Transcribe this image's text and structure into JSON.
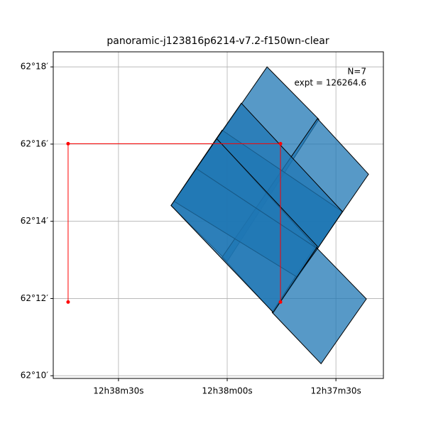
{
  "chart_data": {
    "type": "footprint",
    "title": "panoramic-j123816p6214-v7.2-f150wn-clear",
    "annotations": [
      "N=7",
      "expt = 126264.6"
    ],
    "xlim": [
      108.0,
      16.9
    ],
    "ylim": [
      9.93,
      18.39
    ],
    "xticks": [
      {
        "value": 90,
        "label": "12h38m30s"
      },
      {
        "value": 60,
        "label": "12h38m00s"
      },
      {
        "value": 30,
        "label": "12h37m30s"
      }
    ],
    "yticks": [
      {
        "value": 10,
        "label": "62°10′"
      },
      {
        "value": 12,
        "label": "62°12′"
      },
      {
        "value": 14,
        "label": "62°14′"
      },
      {
        "value": 16,
        "label": "62°16′"
      },
      {
        "value": 18,
        "label": "62°18′"
      }
    ],
    "grid": true,
    "footprint_color": "#1f77b4",
    "footprints": [
      {
        "x": [
          49.0,
          34.7,
          60.0,
          75.5
        ],
        "y": [
          18.0,
          16.64,
          12.96,
          14.41
        ]
      },
      {
        "x": [
          35.1,
          21.0,
          47.3,
          61.4
        ],
        "y": [
          16.66,
          15.22,
          11.64,
          13.07
        ]
      },
      {
        "x": [
          35.7,
          21.6,
          34.1,
          47.6
        ],
        "y": [
          13.35,
          11.99,
          10.31,
          11.64
        ]
      },
      {
        "x": [
          61.4,
          28.2,
          35.1,
          68.6
        ],
        "y": [
          16.36,
          14.25,
          13.29,
          15.37
        ]
      },
      {
        "x": [
          56.1,
          28.2,
          35.1,
          62.9
        ],
        "y": [
          17.06,
          14.25,
          13.29,
          16.14
        ]
      },
      {
        "x": [
          68.6,
          35.1,
          40.8,
          74.7
        ],
        "y": [
          15.37,
          13.29,
          12.56,
          14.52
        ]
      },
      {
        "x": [
          62.9,
          35.1,
          47.3,
          75.5
        ],
        "y": [
          16.14,
          13.35,
          11.64,
          14.41
        ]
      }
    ],
    "series": [
      {
        "color": "#ff0000",
        "x": [
          103.9,
          103.9,
          45.3,
          45.3
        ],
        "y": [
          11.91,
          16.01,
          16.01,
          11.91
        ]
      }
    ]
  }
}
